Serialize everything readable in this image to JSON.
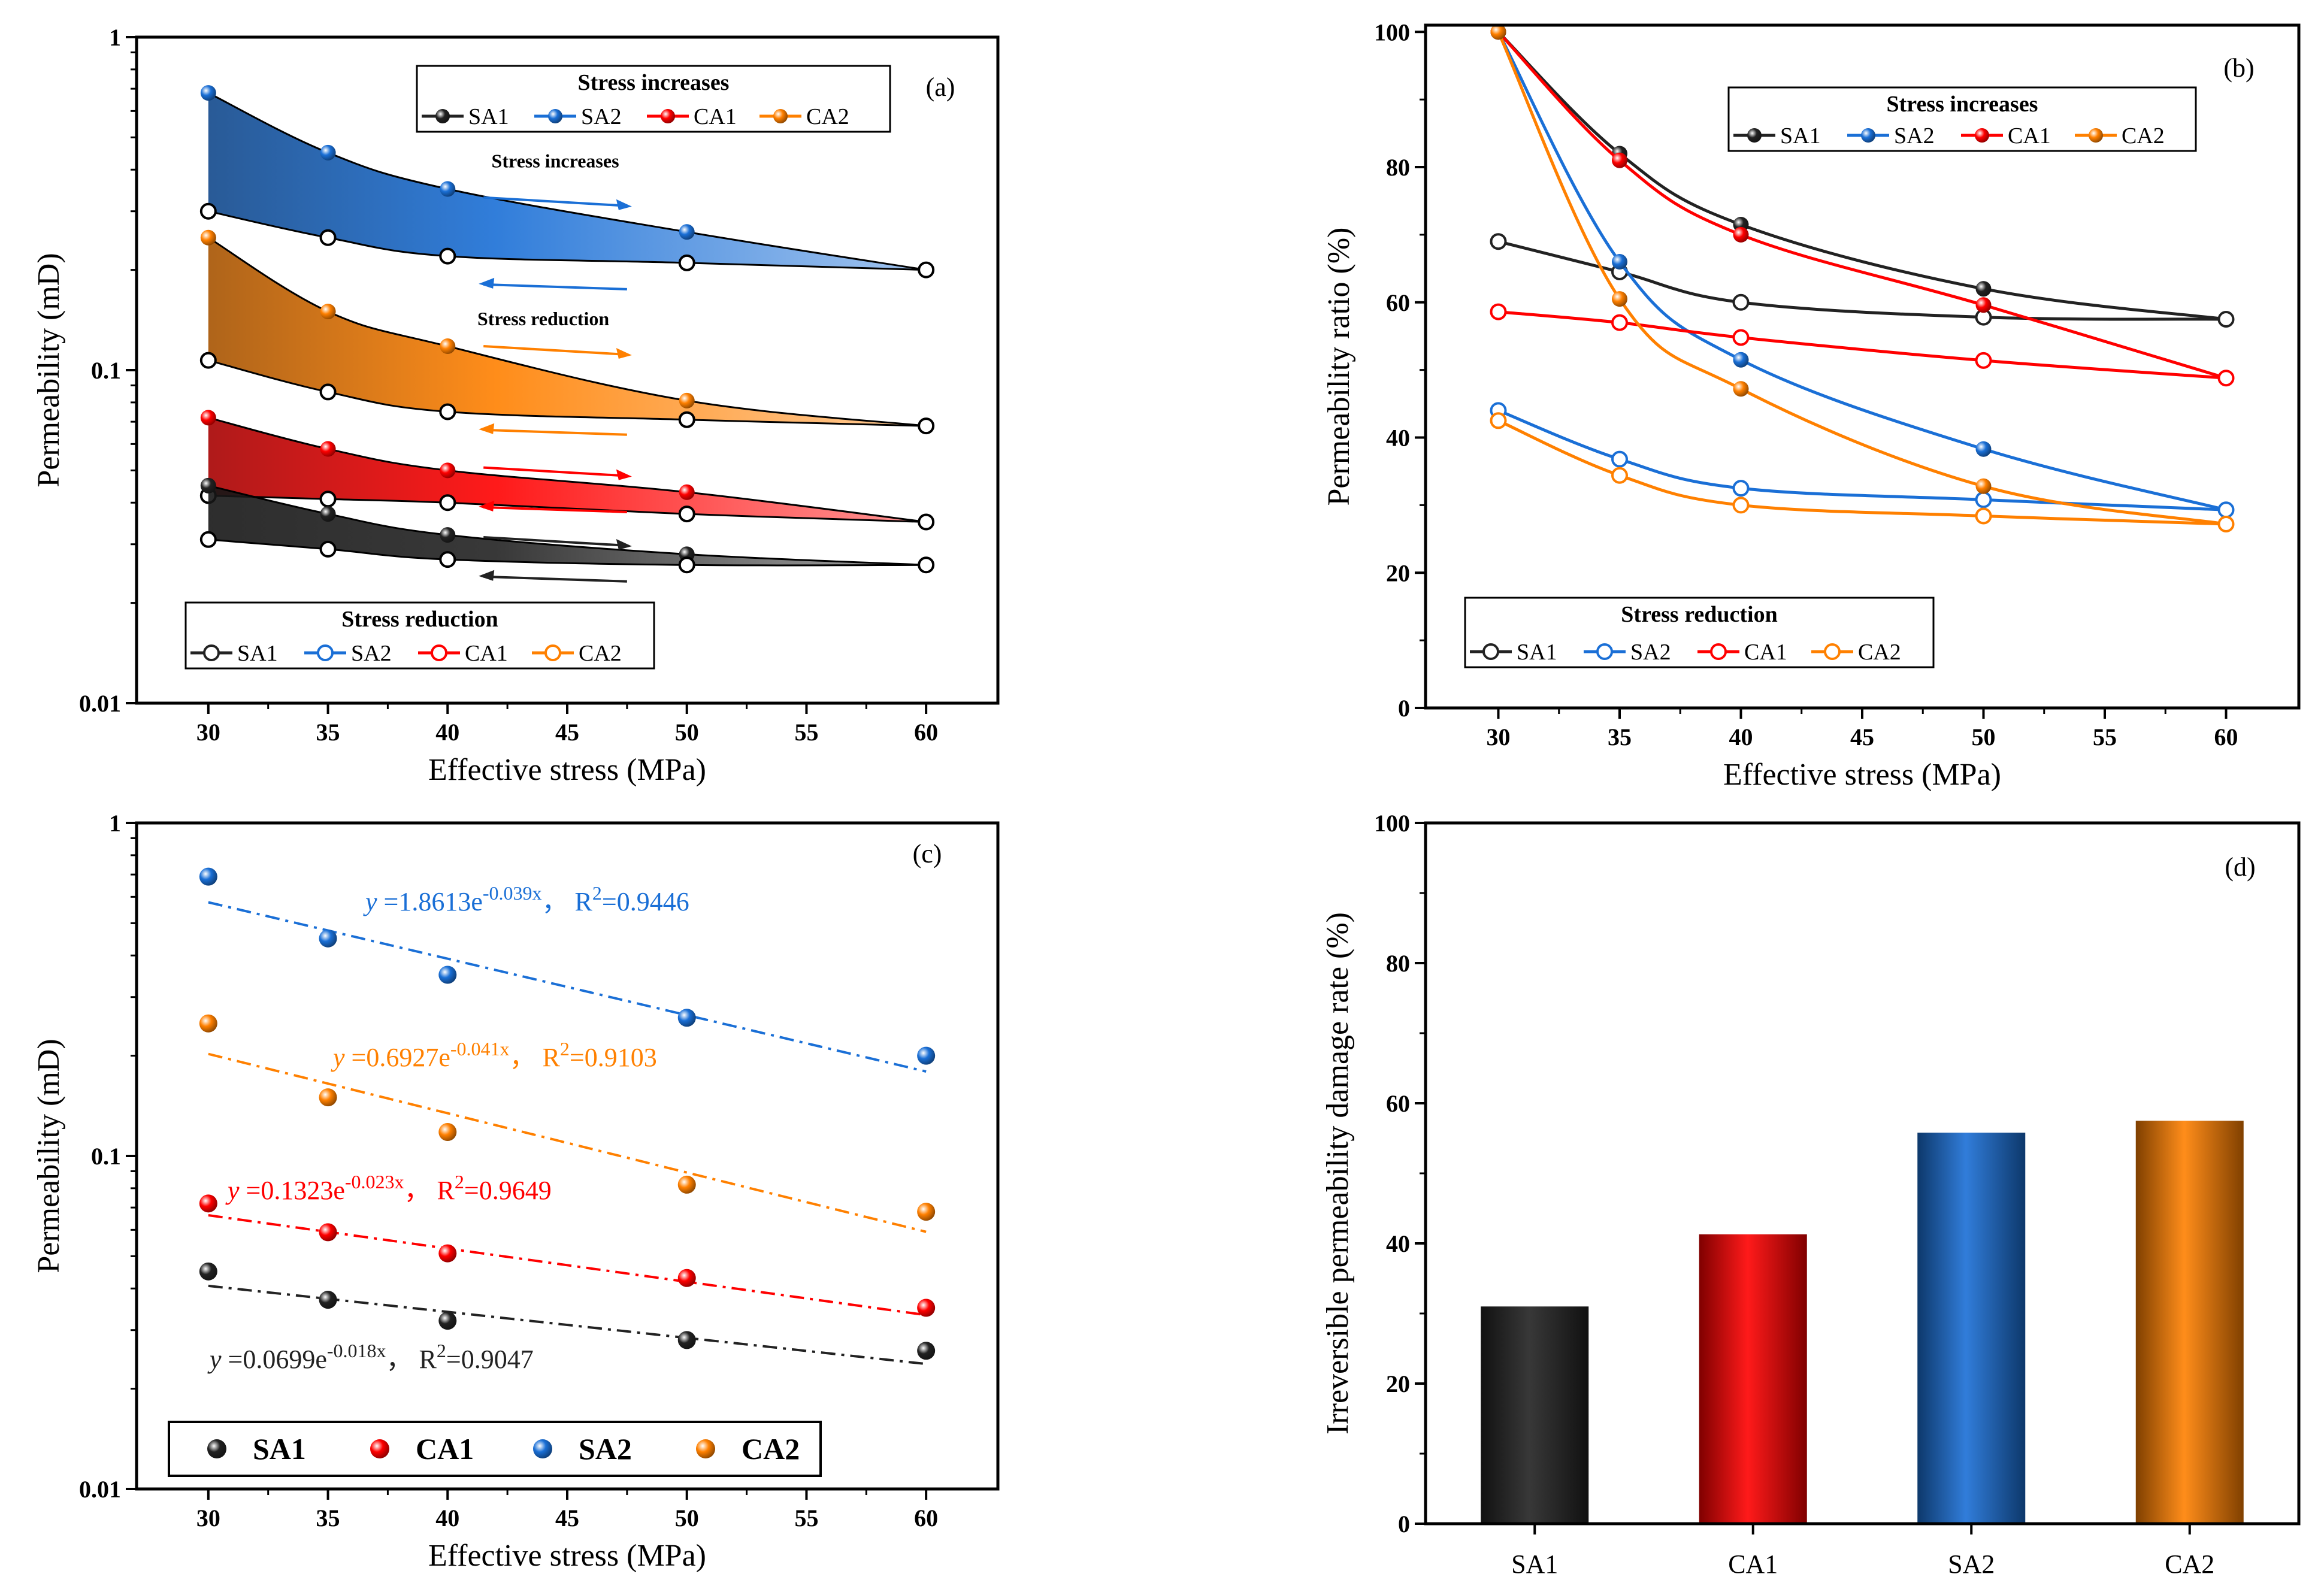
{
  "colors": {
    "SA1": "#222222",
    "SA2": "#1a6fd6",
    "CA1": "#ff0000",
    "CA2": "#ff8000"
  },
  "chart_data": [
    {
      "panel": "(a)",
      "type": "line",
      "yscale": "log",
      "xlabel": "Effective stress  (MPa)",
      "ylabel": "Permeability (mD)",
      "xlim": [
        27,
        63
      ],
      "ylim": [
        0.01,
        1
      ],
      "xticks": [
        30,
        35,
        40,
        45,
        50,
        55,
        60
      ],
      "yticks": [
        0.01,
        0.1,
        1
      ],
      "ytick_labels": [
        "0.01",
        "0.1",
        "1"
      ],
      "x": [
        30,
        35,
        40,
        50,
        60
      ],
      "legend_increase": {
        "title": "Stress increases",
        "names": [
          "SA1",
          "SA2",
          "CA1",
          "CA2"
        ]
      },
      "legend_reduction": {
        "title": "Stress reduction",
        "names": [
          "SA1",
          "SA2",
          "CA1",
          "CA2"
        ]
      },
      "arrow_labels": {
        "increase": "Stress increases",
        "reduction": "Stress reduction"
      },
      "series": [
        {
          "name": "SA1",
          "increase": [
            0.045,
            0.037,
            0.032,
            0.028,
            0.026
          ],
          "reduction": [
            0.031,
            0.029,
            0.027,
            0.026,
            0.026
          ]
        },
        {
          "name": "SA2",
          "increase": [
            0.68,
            0.45,
            0.35,
            0.26,
            0.2
          ],
          "reduction": [
            0.3,
            0.25,
            0.22,
            0.21,
            0.2
          ]
        },
        {
          "name": "CA1",
          "increase": [
            0.072,
            0.058,
            0.05,
            0.043,
            0.035
          ],
          "reduction": [
            0.042,
            0.041,
            0.04,
            0.037,
            0.035
          ]
        },
        {
          "name": "CA2",
          "increase": [
            0.25,
            0.15,
            0.118,
            0.081,
            0.068
          ],
          "reduction": [
            0.107,
            0.086,
            0.075,
            0.071,
            0.068
          ]
        }
      ]
    },
    {
      "panel": "(b)",
      "type": "line",
      "xlabel": "Effective stress  (MPa)",
      "ylabel": "Permeability ratio (%)",
      "xlim": [
        27,
        63
      ],
      "ylim": [
        0,
        101
      ],
      "xticks": [
        30,
        35,
        40,
        45,
        50,
        55,
        60
      ],
      "yticks": [
        0,
        20,
        40,
        60,
        80,
        100
      ],
      "x": [
        30,
        35,
        40,
        50,
        60
      ],
      "legend_increase": {
        "title": "Stress increases",
        "names": [
          "SA1",
          "SA2",
          "CA1",
          "CA2"
        ]
      },
      "legend_reduction": {
        "title": "Stress reduction",
        "names": [
          "SA1",
          "SA2",
          "CA1",
          "CA2"
        ]
      },
      "series": [
        {
          "name": "SA1",
          "increase": [
            100,
            82,
            71.5,
            62,
            57.5
          ],
          "reduction": [
            69,
            64.5,
            60,
            57.8,
            57.5
          ]
        },
        {
          "name": "SA2",
          "increase": [
            100,
            66,
            51.5,
            38.3,
            29.3
          ],
          "reduction": [
            44,
            36.8,
            32.5,
            30.8,
            29.3
          ]
        },
        {
          "name": "CA1",
          "increase": [
            100,
            81,
            70,
            59.6,
            48.8
          ],
          "reduction": [
            58.6,
            57,
            54.8,
            51.4,
            48.8
          ]
        },
        {
          "name": "CA2",
          "increase": [
            100,
            60.5,
            47.2,
            32.8,
            27.2
          ],
          "reduction": [
            42.5,
            34.4,
            30,
            28.4,
            27.2
          ]
        }
      ]
    },
    {
      "panel": "(c)",
      "type": "scatter",
      "yscale": "log",
      "xlabel": "Effective stress  (MPa)",
      "ylabel": "Permeability (mD)",
      "xlim": [
        27,
        63
      ],
      "ylim": [
        0.01,
        1
      ],
      "xticks": [
        30,
        35,
        40,
        45,
        50,
        55,
        60
      ],
      "yticks": [
        0.01,
        0.1,
        1
      ],
      "ytick_labels": [
        "0.01",
        "0.1",
        "1"
      ],
      "x": [
        30,
        35,
        40,
        50,
        60
      ],
      "legend_names": [
        "SA1",
        "CA1",
        "SA2",
        "CA2"
      ],
      "series": [
        {
          "name": "SA1",
          "values": [
            0.045,
            0.037,
            0.032,
            0.028,
            0.026
          ],
          "fit": {
            "a": 0.0699,
            "b": -0.018,
            "r2": "0.9047",
            "eq": {
              "y": "y",
              "coef": " =0.0699e",
              "exp": "-0.018x",
              "r2": "，  R",
              "sq": "2",
              "val": "=0.9047"
            }
          }
        },
        {
          "name": "CA1",
          "values": [
            0.072,
            0.059,
            0.051,
            0.043,
            0.035
          ],
          "fit": {
            "a": 0.1323,
            "b": -0.023,
            "r2": "0.9649",
            "eq": {
              "y": "y",
              "coef": " =0.1323e",
              "exp": "-0.023x",
              "r2": "，  R",
              "sq": "2",
              "val": "=0.9649"
            }
          }
        },
        {
          "name": "SA2",
          "values": [
            0.69,
            0.45,
            0.35,
            0.26,
            0.2
          ],
          "fit": {
            "a": 1.8613,
            "b": -0.039,
            "r2": "0.9446",
            "eq": {
              "y": "y",
              "coef": " =1.8613e",
              "exp": "-0.039x",
              "r2": "，  R",
              "sq": "2",
              "val": "=0.9446"
            }
          }
        },
        {
          "name": "CA2",
          "values": [
            0.25,
            0.15,
            0.118,
            0.082,
            0.068
          ],
          "fit": {
            "a": 0.6927,
            "b": -0.041,
            "r2": "0.9103",
            "eq": {
              "y": "y",
              "coef": " =0.6927e",
              "exp": "-0.041x",
              "r2": "，  R",
              "sq": "2",
              "val": "=0.9103"
            }
          }
        }
      ]
    },
    {
      "panel": "(d)",
      "type": "bar",
      "ylabel": "Irreversible permeability damage rate  (%)",
      "ylim": [
        0,
        100
      ],
      "yticks": [
        0,
        20,
        40,
        60,
        80,
        100
      ],
      "categories": [
        "SA1",
        "CA1",
        "SA2",
        "CA2"
      ],
      "values": [
        31,
        41.3,
        55.8,
        57.5
      ]
    }
  ]
}
